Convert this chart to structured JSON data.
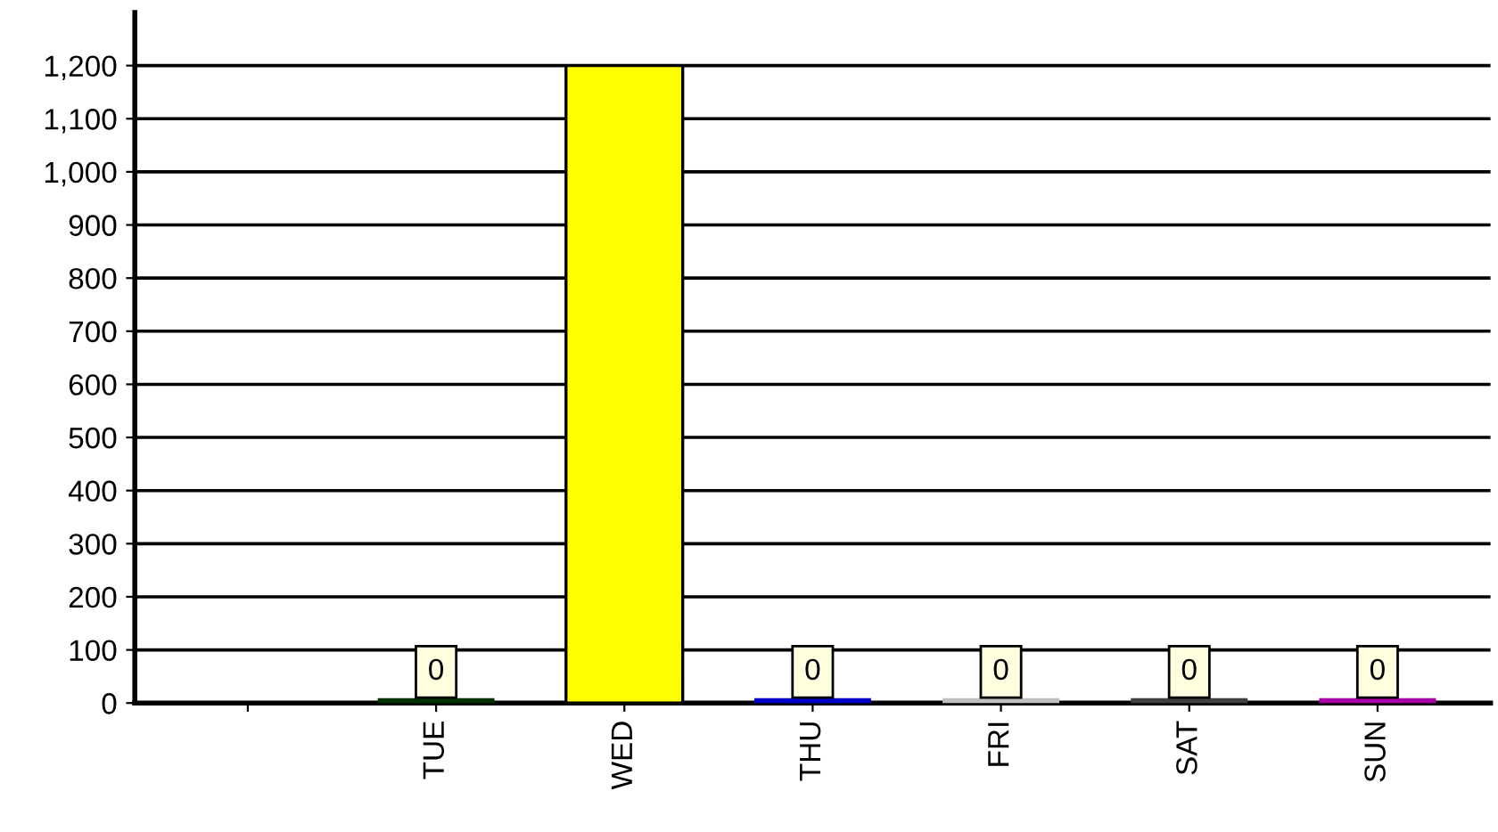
{
  "chart_data": {
    "type": "bar",
    "categories": [
      null,
      "TUE",
      "WED",
      "THU",
      "FRI",
      "SAT",
      "SUN"
    ],
    "values": [
      null,
      0,
      1200,
      0,
      0,
      0,
      0
    ],
    "colors": [
      "#ffff00",
      "#003300",
      "#ffff00",
      "#0000cc",
      "#c0c0c0",
      "#404040",
      "#aa00aa"
    ],
    "value_labels": [
      null,
      "0",
      null,
      "0",
      "0",
      "0",
      "0"
    ],
    "ylim": [
      0,
      1300
    ],
    "yticks": [
      0,
      {
        "value": 100,
        "label": "100"
      },
      {
        "value": 200,
        "label": "200"
      },
      {
        "value": 300,
        "label": "300"
      },
      {
        "value": 400,
        "label": "400"
      },
      {
        "value": 500,
        "label": "500"
      },
      {
        "value": 600,
        "label": "600"
      },
      {
        "value": 700,
        "label": "700"
      },
      {
        "value": 800,
        "label": "800"
      },
      {
        "value": 900,
        "label": "900"
      },
      {
        "value": 1000,
        "label": "1,000"
      },
      {
        "value": 1100,
        "label": "1,100"
      },
      {
        "value": 1200,
        "label": "1,200"
      }
    ],
    "grid": "y",
    "legend": false
  }
}
